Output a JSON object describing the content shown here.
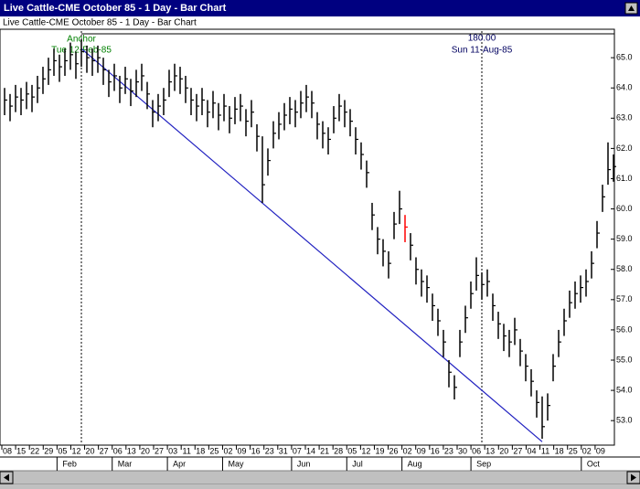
{
  "window": {
    "title": "Live Cattle-CME October 85 - 1 Day - Bar Chart"
  },
  "chart_data": {
    "type": "ohlc",
    "title": "Live Cattle-CME October 85 - 1 Day - Bar Chart",
    "color": "#000000",
    "highlight": {
      "index": 73,
      "color": "#ff0000"
    },
    "ylim": [
      52.25,
      65.85
    ],
    "yticks": [
      {
        "value": 53,
        "label": "53.0"
      },
      {
        "value": 54,
        "label": "54.0"
      },
      {
        "value": 55,
        "label": "55.0"
      },
      {
        "value": 56,
        "label": "56.0"
      },
      {
        "value": 57,
        "label": "57.0"
      },
      {
        "value": 58,
        "label": "58.0"
      },
      {
        "value": 59,
        "label": "59.0"
      },
      {
        "value": 60,
        "label": "60.0"
      },
      {
        "value": 61,
        "label": "61.0"
      },
      {
        "value": 62,
        "label": "62.0"
      },
      {
        "value": 63,
        "label": "63.0"
      },
      {
        "value": 64,
        "label": "64.0"
      },
      {
        "value": 65,
        "label": "65.0"
      }
    ],
    "xtick_labels": [
      "08",
      "15",
      "22",
      "29",
      "05",
      "12",
      "20",
      "27",
      "06",
      "13",
      "20",
      "27",
      "03",
      "11",
      "18",
      "25",
      "02",
      "09",
      "16",
      "23",
      "31",
      "07",
      "14",
      "21",
      "28",
      "05",
      "12",
      "19",
      "26",
      "02",
      "09",
      "16",
      "23",
      "30",
      "06",
      "13",
      "20",
      "27",
      "04",
      "11",
      "18",
      "25",
      "02",
      "09"
    ],
    "month_labels": [
      null,
      null,
      null,
      null,
      "Feb",
      null,
      null,
      null,
      "Mar",
      null,
      null,
      null,
      "Apr",
      null,
      null,
      null,
      "May",
      null,
      null,
      null,
      null,
      "Jun",
      null,
      null,
      null,
      "Jul",
      null,
      null,
      null,
      "Aug",
      null,
      null,
      null,
      null,
      "Sep",
      null,
      null,
      null,
      null,
      null,
      null,
      null,
      "Oct",
      null
    ],
    "high": [
      64.0,
      63.8,
      64.1,
      64.0,
      64.2,
      64.1,
      64.4,
      64.7,
      65.0,
      65.3,
      65.1,
      65.3,
      65.5,
      65.2,
      65.6,
      65.4,
      65.3,
      65.4,
      65.0,
      64.6,
      64.8,
      64.4,
      64.7,
      64.3,
      64.6,
      64.8,
      64.2,
      63.6,
      63.8,
      64.0,
      64.6,
      64.8,
      64.7,
      64.4,
      64.0,
      63.8,
      64.0,
      63.6,
      63.9,
      63.5,
      63.8,
      63.4,
      63.7,
      63.8,
      63.3,
      63.6,
      62.8,
      62.4,
      62.0,
      62.9,
      63.2,
      63.5,
      63.7,
      63.6,
      63.9,
      64.1,
      63.9,
      63.2,
      62.9,
      62.7,
      63.4,
      63.8,
      63.6,
      63.3,
      62.7,
      62.2,
      61.6,
      60.2,
      59.4,
      59.0,
      58.6,
      59.9,
      60.6,
      59.8,
      59.2,
      58.4,
      58.0,
      57.8,
      57.2,
      56.7,
      56.0,
      55.0,
      54.5,
      56.0,
      56.8,
      57.6,
      58.4,
      57.9,
      58.0,
      57.2,
      56.6,
      56.2,
      56.0,
      56.4,
      55.7,
      55.2,
      54.7,
      54.0,
      53.8,
      53.9,
      55.2,
      56.0,
      56.7,
      57.3,
      57.6,
      57.8,
      58.0,
      58.6,
      59.6,
      60.8,
      62.2,
      61.8
    ],
    "low": [
      63.1,
      62.9,
      63.2,
      63.1,
      63.3,
      63.2,
      63.5,
      63.8,
      64.1,
      64.4,
      64.2,
      64.4,
      64.6,
      64.3,
      64.7,
      64.5,
      64.4,
      64.5,
      64.1,
      63.7,
      63.9,
      63.5,
      63.8,
      63.4,
      63.7,
      63.9,
      63.3,
      62.7,
      62.9,
      63.1,
      63.7,
      63.9,
      63.8,
      63.5,
      63.1,
      62.9,
      63.1,
      62.7,
      63.0,
      62.6,
      62.9,
      62.5,
      62.8,
      62.9,
      62.4,
      62.7,
      61.9,
      60.2,
      61.1,
      62.0,
      62.3,
      62.6,
      62.8,
      62.7,
      63.0,
      63.2,
      63.0,
      62.3,
      62.0,
      61.8,
      62.5,
      62.9,
      62.7,
      62.4,
      61.8,
      61.3,
      60.7,
      59.3,
      58.5,
      58.1,
      57.7,
      59.0,
      59.5,
      58.9,
      58.3,
      57.5,
      57.1,
      56.9,
      56.3,
      55.8,
      55.1,
      54.1,
      53.7,
      55.1,
      55.9,
      56.7,
      57.3,
      57.0,
      57.1,
      56.3,
      55.7,
      55.3,
      55.1,
      55.5,
      54.8,
      54.3,
      53.8,
      53.1,
      52.4,
      53.0,
      54.3,
      55.1,
      55.8,
      56.4,
      56.7,
      56.9,
      57.1,
      57.7,
      58.7,
      59.9,
      60.8,
      60.9
    ],
    "close": [
      63.6,
      63.4,
      63.7,
      63.6,
      63.8,
      63.7,
      64.0,
      64.3,
      64.6,
      64.9,
      64.7,
      64.9,
      65.1,
      64.8,
      65.2,
      65.0,
      64.9,
      65.0,
      64.6,
      64.2,
      64.4,
      64.0,
      64.3,
      63.9,
      64.2,
      64.4,
      63.8,
      63.2,
      63.4,
      63.6,
      64.2,
      64.4,
      64.3,
      64.0,
      63.6,
      63.4,
      63.6,
      63.2,
      63.5,
      63.1,
      63.4,
      63.0,
      63.3,
      63.4,
      62.9,
      63.2,
      62.4,
      60.8,
      61.6,
      62.5,
      62.8,
      63.1,
      63.3,
      63.2,
      63.5,
      63.7,
      63.5,
      62.8,
      62.5,
      62.3,
      63.0,
      63.4,
      63.2,
      62.9,
      62.3,
      61.8,
      61.2,
      59.8,
      59.0,
      58.6,
      58.2,
      59.5,
      60.0,
      59.4,
      58.8,
      58.0,
      57.6,
      57.4,
      56.8,
      56.3,
      55.6,
      54.6,
      54.1,
      55.6,
      56.4,
      57.2,
      57.8,
      57.5,
      57.6,
      56.8,
      56.2,
      55.8,
      55.6,
      56.0,
      55.3,
      54.8,
      54.3,
      53.6,
      52.8,
      53.5,
      54.8,
      55.6,
      56.3,
      56.9,
      57.2,
      57.4,
      57.6,
      58.2,
      59.2,
      60.4,
      61.3,
      61.4
    ],
    "trendline": {
      "color": "#2020c0",
      "start": [
        14,
        65.3
      ],
      "end": [
        98,
        52.3
      ]
    },
    "anchor": {
      "label": "Anchor",
      "date": "Tue 12-Feb-85",
      "bar": 14,
      "color": "#008000"
    },
    "cursor": {
      "label": "180.00",
      "date": "Sun 11-Aug-85",
      "bar": 87,
      "color": "#000060"
    }
  }
}
